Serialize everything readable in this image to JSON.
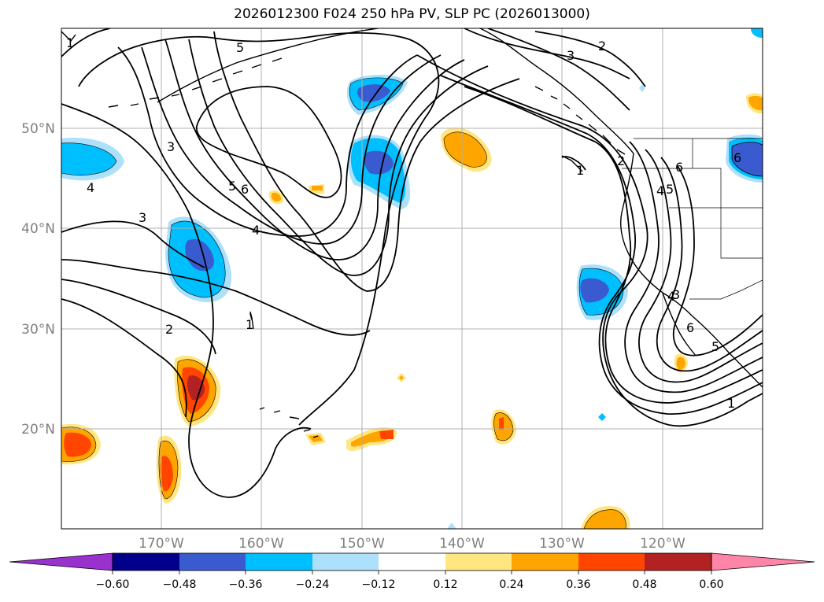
{
  "title": "2026012300 F024 250 hPa PV, SLP PC (2026013000)",
  "latitude_labels": [
    "50°N",
    "40°N",
    "30°N",
    "20°N"
  ],
  "longitude_labels": [
    "170°W",
    "160°W",
    "150°W",
    "140°W",
    "130°W",
    "120°W"
  ],
  "colorbar": {
    "tick_labels": [
      "−0.60",
      "−0.48",
      "−0.36",
      "−0.24",
      "−0.12",
      "0.12",
      "0.24",
      "0.36",
      "0.48",
      "0.60"
    ],
    "colors": [
      "#9932CC",
      "#00008B",
      "#3A5BD0",
      "#00BFFF",
      "#ADE0FA",
      "#FFFFFF",
      "#FFE680",
      "#FFA500",
      "#FF4500",
      "#B22222",
      "#FF85A8"
    ]
  },
  "contour_labels": [
    "1",
    "2",
    "3",
    "4",
    "5",
    "6",
    "5",
    "6",
    "4",
    "3",
    "2",
    "1",
    "3",
    "2",
    "4",
    "5",
    "6",
    "1",
    "6",
    "4",
    "5",
    "3",
    "1"
  ],
  "colors": {
    "negative_light": "#ADE0FA",
    "negative_mid": "#00BFFF",
    "negative_dark": "#3A5BD0",
    "positive_light": "#FFE680",
    "positive_mid": "#FFA500",
    "positive_strong": "#FF4500",
    "positive_dark": "#B22222",
    "gridline": "#b0b0b0"
  }
}
